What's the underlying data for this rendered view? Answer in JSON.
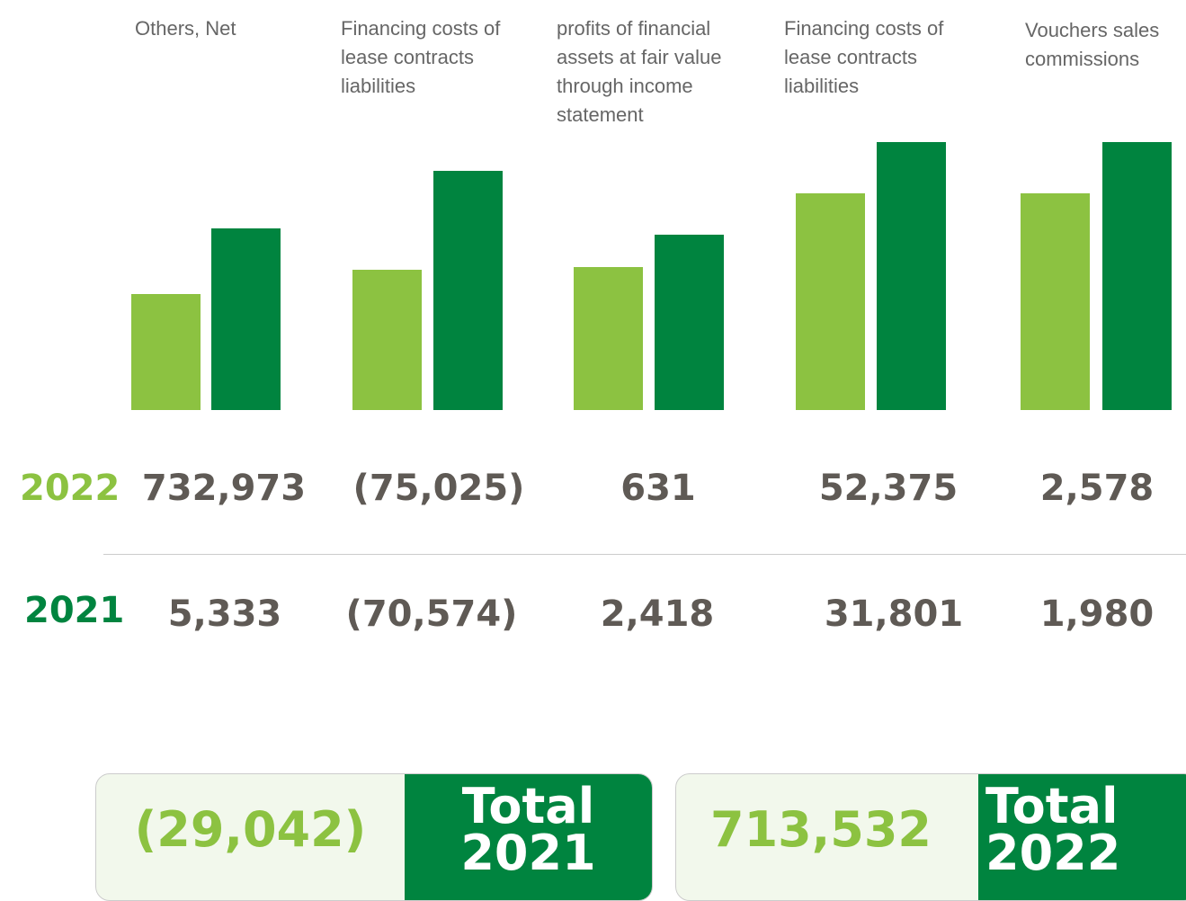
{
  "columns": [
    {
      "label": "Others, Net",
      "value_2022": "732,973",
      "value_2021": "5,333"
    },
    {
      "label": "Financing costs of lease contracts liabilities",
      "value_2022": "(75,025)",
      "value_2021": "(70,574)"
    },
    {
      "label": "profits of financial assets at fair value through income statement",
      "value_2022": "631",
      "value_2021": "2,418"
    },
    {
      "label": "Financing costs of lease contracts liabilities",
      "value_2022": "52,375",
      "value_2021": "31,801"
    },
    {
      "label": "Vouchers sales commissions",
      "value_2022": "2,578",
      "value_2021": "1,980"
    }
  ],
  "rows": {
    "year_2022": "2022",
    "year_2021": "2021"
  },
  "totals": [
    {
      "value": "(29,042)",
      "label_top": "Total",
      "label_bottom": "2021"
    },
    {
      "value": "713,532",
      "label_top": "Total",
      "label_bottom": "2022"
    }
  ]
}
